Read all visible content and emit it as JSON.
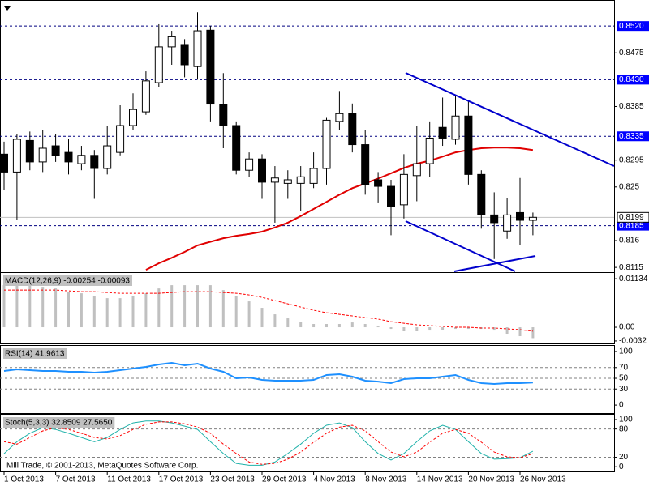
{
  "chart_data": [
    {
      "type": "candlestick",
      "categories": [
        "1 Oct 2013",
        null,
        null,
        null,
        "7 Oct 2013",
        null,
        null,
        null,
        "11 Oct 2013",
        null,
        null,
        null,
        "17 Oct 2013",
        null,
        null,
        null,
        "23 Oct 2013",
        null,
        null,
        null,
        "29 Oct 2013",
        null,
        null,
        null,
        "4 Nov 2013",
        null,
        null,
        null,
        "8 Nov 2013",
        null,
        null,
        null,
        "14 Nov 2013",
        null,
        null,
        null,
        "20 Nov 2013",
        null,
        null,
        null,
        "26 Nov 2013",
        null
      ],
      "open": [
        0.8305,
        0.8275,
        0.8328,
        0.8292,
        0.8319,
        0.8308,
        0.8289,
        0.8303,
        0.8281,
        0.8308,
        0.8353,
        0.8376,
        0.8425,
        0.8485,
        0.8489,
        0.8452,
        0.8513,
        0.8389,
        0.8353,
        0.8278,
        0.8297,
        0.8258,
        0.8256,
        0.8256,
        0.8256,
        0.8281,
        0.836,
        0.8373,
        0.8321,
        0.8262,
        0.8251,
        0.822,
        0.8269,
        0.8289,
        0.835,
        0.833,
        0.8369,
        0.8271,
        0.8203,
        0.8176,
        0.8207,
        0.8194
      ],
      "high": [
        0.8326,
        0.8339,
        0.8343,
        0.8346,
        0.8339,
        0.833,
        0.8319,
        0.8312,
        0.8353,
        0.8387,
        0.8407,
        0.8444,
        0.8523,
        0.8512,
        0.8498,
        0.8543,
        0.852,
        0.8441,
        0.836,
        0.8308,
        0.8305,
        0.8285,
        0.8278,
        0.8285,
        0.8308,
        0.8366,
        0.8411,
        0.839,
        0.8346,
        0.8275,
        0.8262,
        0.8305,
        0.8353,
        0.836,
        0.84,
        0.8403,
        0.8394,
        0.8278,
        0.8241,
        0.8231,
        0.8265,
        0.8207
      ],
      "low": [
        0.8245,
        0.8194,
        0.8278,
        0.8275,
        0.8292,
        0.8271,
        0.8278,
        0.823,
        0.8271,
        0.8303,
        0.8346,
        0.8371,
        0.8417,
        0.8455,
        0.8434,
        0.843,
        0.836,
        0.8315,
        0.8271,
        0.8267,
        0.823,
        0.819,
        0.823,
        0.821,
        0.8248,
        0.8254,
        0.8346,
        0.8308,
        0.8237,
        0.8224,
        0.8169,
        0.8197,
        0.8226,
        0.8267,
        0.8319,
        0.8321,
        0.8254,
        0.818,
        0.8129,
        0.8163,
        0.8153,
        0.8169
      ],
      "close": [
        0.8275,
        0.833,
        0.8292,
        0.8315,
        0.8303,
        0.8292,
        0.8303,
        0.8281,
        0.8319,
        0.8353,
        0.838,
        0.8428,
        0.8485,
        0.8502,
        0.8455,
        0.8512,
        0.8389,
        0.8353,
        0.8278,
        0.8297,
        0.8258,
        0.8265,
        0.8262,
        0.8267,
        0.8281,
        0.8362,
        0.8373,
        0.8321,
        0.8254,
        0.8251,
        0.8217,
        0.8271,
        0.8289,
        0.8332,
        0.8332,
        0.8369,
        0.8271,
        0.8203,
        0.819,
        0.8203,
        0.8194,
        0.8199
      ],
      "up_color": "#ffffff",
      "down_color": "#000000",
      "overlays": [
        {
          "color": "#e00000",
          "values": [
            null,
            null,
            null,
            null,
            null,
            null,
            null,
            null,
            null,
            null,
            null,
            0.8111,
            0.8122,
            0.8131,
            0.8141,
            0.8152,
            0.8158,
            0.8164,
            0.8168,
            0.8171,
            0.8175,
            0.8182,
            0.819,
            0.8201,
            0.8213,
            0.8225,
            0.8237,
            0.8248,
            0.8256,
            0.8264,
            0.8273,
            0.8282,
            0.8289,
            0.8294,
            0.8301,
            0.8308,
            0.8312,
            0.8315,
            0.8316,
            0.8316,
            0.8315,
            0.8312
          ]
        }
      ],
      "levels": [
        {
          "value": 0.852,
          "label": "0.8520"
        },
        {
          "value": 0.843,
          "label": "0.8430"
        },
        {
          "value": 0.8335,
          "label": "0.8335"
        },
        {
          "value": 0.8185,
          "label": "0.8185"
        }
      ],
      "level_color": "#0000ff",
      "current": {
        "value": 0.8199,
        "label": "0.8199"
      },
      "ylim": [
        0.8107,
        0.8561
      ],
      "yticks": [
        0.8475,
        0.8385,
        0.8295,
        0.825,
        0.816,
        0.8115
      ]
    },
    {
      "type": "indicator",
      "title": "MACD(12,26,9) -0.00254 -0.00093",
      "series": [
        {
          "style": "bar",
          "color": "#c0c0c0",
          "values": [
            0.00983,
            0.00983,
            0.00983,
            0.00945,
            0.00907,
            0.00832,
            0.00794,
            0.00737,
            0.0068,
            0.0068,
            0.00737,
            0.00794,
            0.00907,
            0.00983,
            0.00983,
            0.00983,
            0.00983,
            0.00869,
            0.00737,
            0.00605,
            0.00454,
            0.00302,
            0.00208,
            0.00132,
            0.00076,
            0.00076,
            0.00076,
            0.00113,
            0.00076,
            0.00019,
            -0.00038,
            -0.00094,
            -0.00094,
            -0.00076,
            -0.00057,
            -0.00038,
            -0.00038,
            -0.00038,
            -0.00076,
            -0.00151,
            -0.00208,
            -0.00254
          ]
        },
        {
          "style": "line",
          "color": "#ff0000",
          "dash": true,
          "values": [
            0.00869,
            0.00869,
            0.00869,
            0.00869,
            0.00869,
            0.0085,
            0.00832,
            0.00832,
            0.00813,
            0.00794,
            0.00794,
            0.00794,
            0.00794,
            0.00813,
            0.00832,
            0.00832,
            0.00832,
            0.00813,
            0.00794,
            0.00756,
            0.00699,
            0.00624,
            0.00548,
            0.00472,
            0.00397,
            0.0034,
            0.00302,
            0.00265,
            0.00227,
            0.00189,
            0.00132,
            0.00094,
            0.00057,
            0.00038,
            0.00019,
            0,
            0,
            -0.00019,
            -0.00019,
            -0.00038,
            -0.00057,
            -0.00093
          ]
        }
      ],
      "ylim": [
        -0.00378,
        0.0125
      ],
      "yticks": [
        0.01134,
        {
          "value": 0,
          "label": "0.00"
        },
        -0.0032
      ]
    },
    {
      "type": "indicator",
      "title": "RSI(14) 41.9613",
      "series": [
        {
          "style": "line",
          "color": "#1e90ff",
          "width": 2,
          "values": [
            63.6,
            66.7,
            65.2,
            63.6,
            63.6,
            62.1,
            62.1,
            60.6,
            62.1,
            65.2,
            68.2,
            71.2,
            75.8,
            78.8,
            74.2,
            77.3,
            68.2,
            62.1,
            50,
            51.5,
            47,
            45.5,
            45.5,
            45.5,
            47,
            56.1,
            57.6,
            53,
            45.5,
            43.9,
            40.9,
            48.5,
            50,
            50,
            53,
            56.1,
            47,
            40.9,
            39.4,
            40.9,
            40.9,
            41.9613
          ]
        }
      ],
      "levels": [
        70,
        50,
        30
      ],
      "ylim": [
        -15,
        109
      ],
      "yticks": [
        100,
        70,
        50,
        30,
        0
      ]
    },
    {
      "type": "indicator",
      "title": "Stoch(5,3,3) 32.8509 27.5650",
      "series": [
        {
          "style": "line",
          "color": "#20b2aa",
          "values": [
            27.6,
            53,
            71,
            83,
            79,
            71,
            62,
            53,
            62,
            79,
            93,
            97,
            97,
            93,
            86,
            79,
            53,
            28,
            7,
            3,
            3,
            10,
            28,
            48,
            71,
            88,
            93,
            83,
            53,
            28,
            14,
            28,
            53,
            76,
            88,
            79,
            53,
            28,
            16,
            17,
            19,
            32.8509
          ]
        },
        {
          "style": "line",
          "color": "#ff0000",
          "dash": true,
          "values": [
            53,
            48,
            62,
            76,
            83,
            79,
            71,
            62,
            59,
            66,
            79,
            90,
            95,
            95,
            91,
            84,
            71,
            48,
            28,
            10,
            5,
            7,
            16,
            31,
            52,
            71,
            84,
            88,
            76,
            53,
            31,
            21,
            31,
            52,
            71,
            79,
            71,
            52,
            31,
            21,
            19,
            27.565
          ]
        }
      ],
      "levels": [
        80,
        20
      ],
      "ylim": [
        -10,
        108.6
      ],
      "yticks": [
        100,
        80,
        20,
        0
      ]
    }
  ],
  "footer": "Mill Trade, © 2001-2013, MetaQuotes Software Corp."
}
